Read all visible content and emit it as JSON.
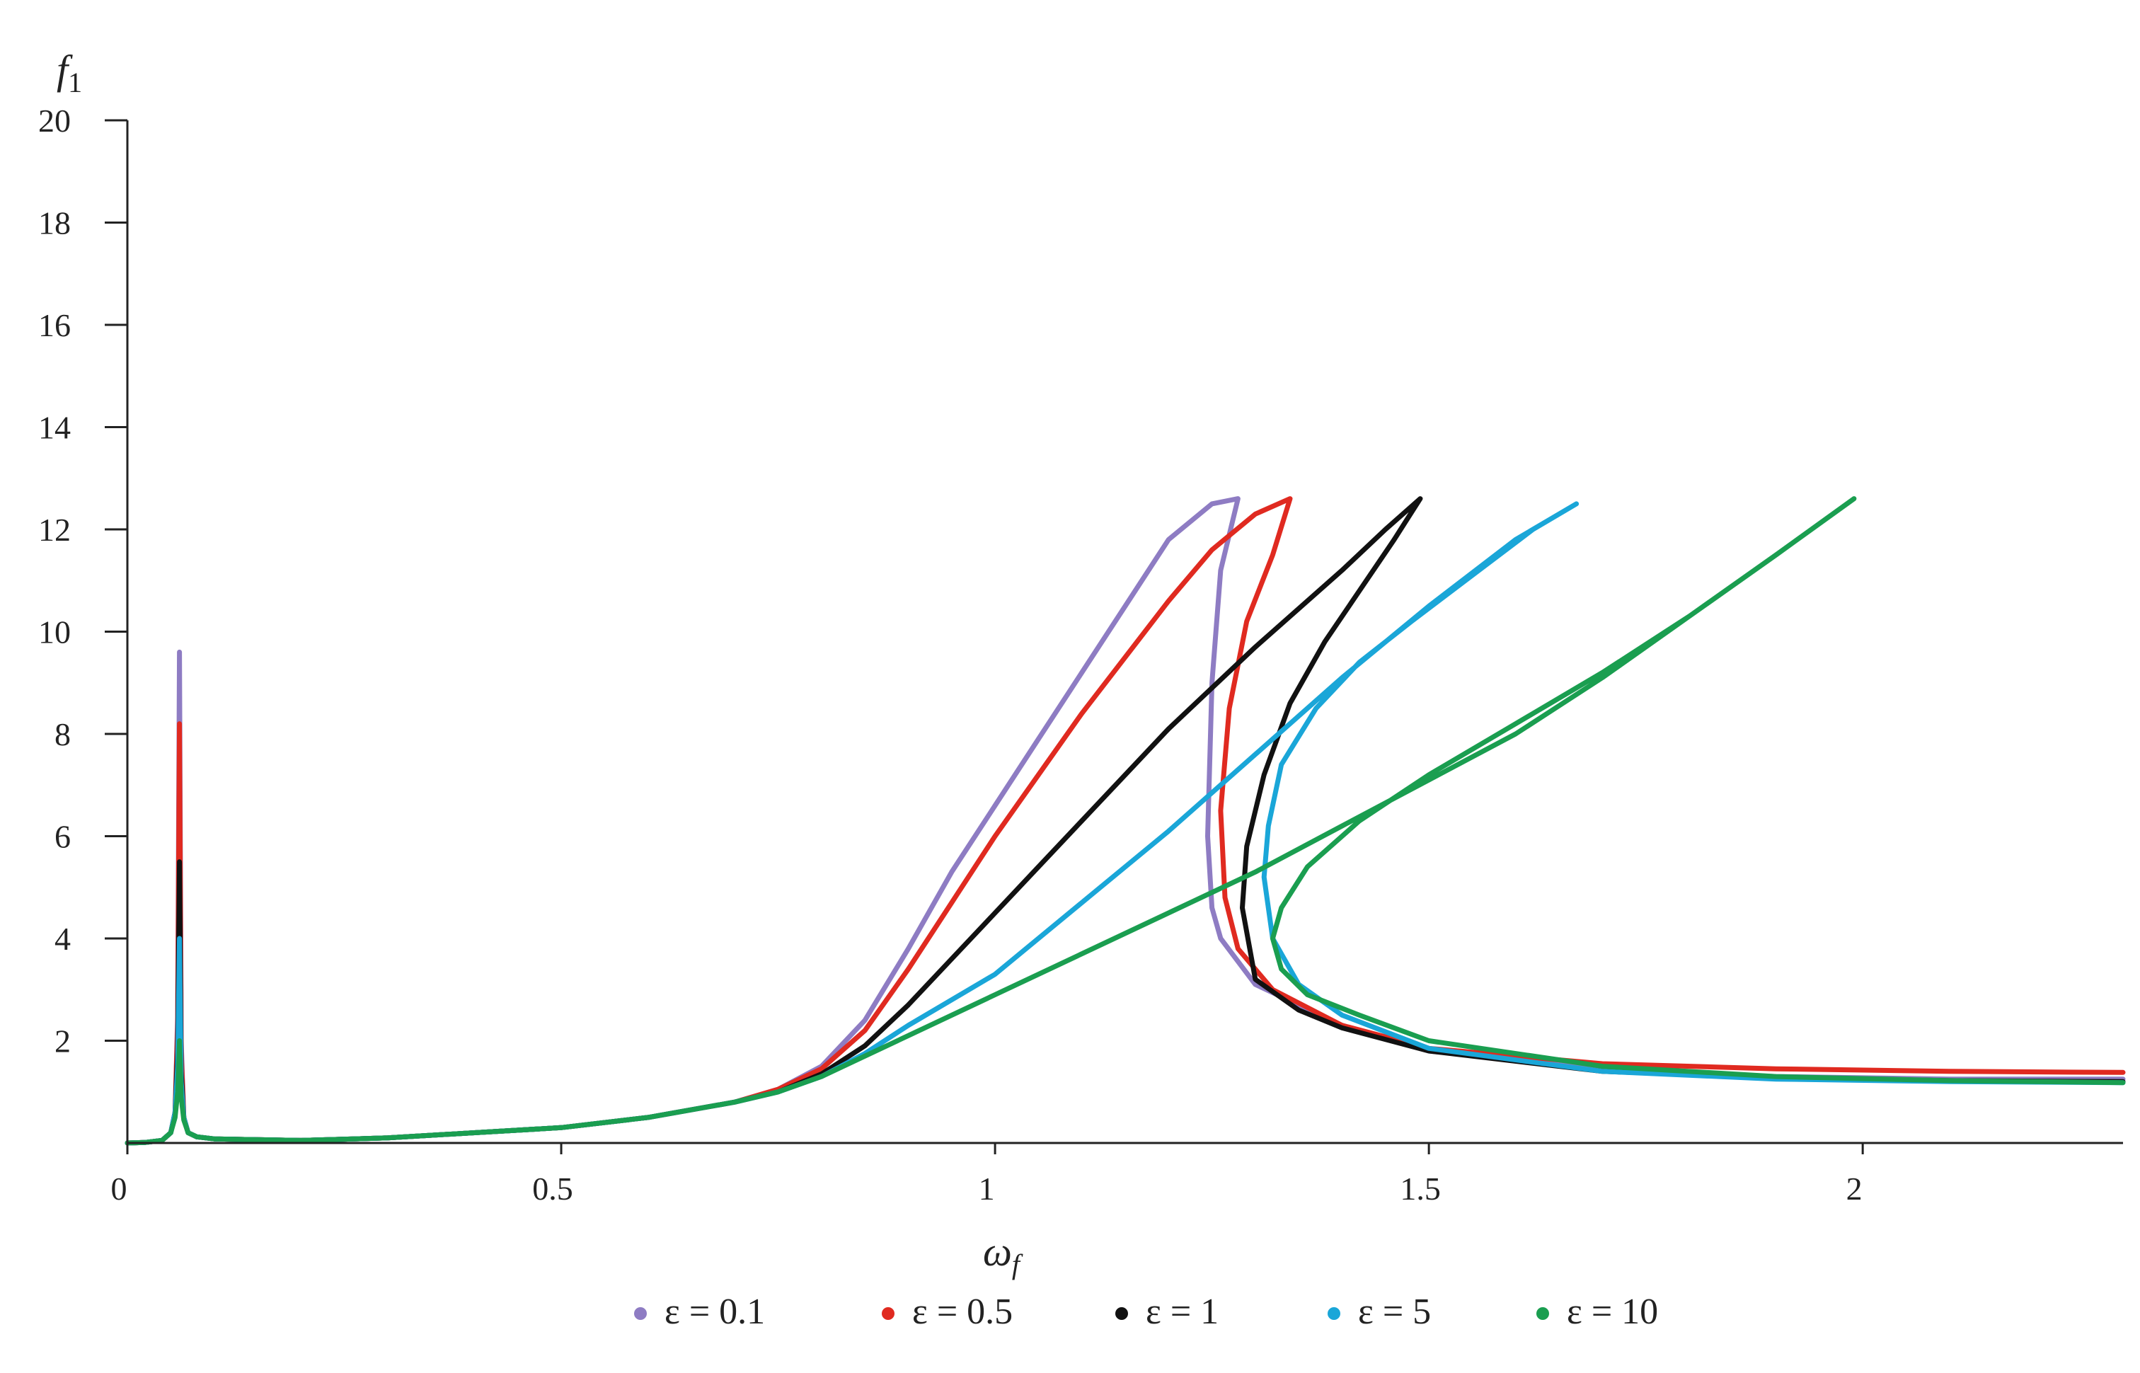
{
  "chart_data": {
    "type": "line",
    "title": "",
    "xlabel": "ω",
    "xlabel_sub": "f",
    "ylabel": "f",
    "ylabel_sub": "1",
    "xlim": [
      0,
      2.3
    ],
    "ylim": [
      0,
      20
    ],
    "x_ticks": [
      0,
      0.5,
      1,
      1.5,
      2
    ],
    "x_tick_labels": [
      "0",
      "0.5",
      "1",
      "1.5",
      "2"
    ],
    "y_ticks": [
      2,
      4,
      6,
      8,
      10,
      12,
      14,
      16,
      18,
      20
    ],
    "y_tick_labels": [
      "2",
      "4",
      "6",
      "8",
      "10",
      "12",
      "14",
      "16",
      "18",
      "20"
    ],
    "grid": false,
    "legend_position": "bottom",
    "series": [
      {
        "name": "ε = 0.1",
        "color": "#8e7cc3",
        "x": [
          0,
          0.02,
          0.04,
          0.05,
          0.055,
          0.058,
          0.06,
          0.062,
          0.065,
          0.07,
          0.08,
          0.1,
          0.2,
          0.3,
          0.4,
          0.5,
          0.6,
          0.7,
          0.75,
          0.8,
          0.85,
          0.9,
          0.95,
          1.0,
          1.05,
          1.1,
          1.15,
          1.2,
          1.25,
          1.28,
          1.26,
          1.25,
          1.245,
          1.25,
          1.26,
          1.3,
          1.4,
          1.5,
          1.7,
          1.9,
          2.1,
          2.3
        ],
        "y": [
          0,
          0.01,
          0.05,
          0.2,
          0.6,
          2.5,
          9.6,
          2.0,
          0.5,
          0.2,
          0.12,
          0.08,
          0.05,
          0.1,
          0.2,
          0.3,
          0.5,
          0.8,
          1.05,
          1.5,
          2.4,
          3.8,
          5.3,
          6.6,
          7.9,
          9.2,
          10.5,
          11.8,
          12.5,
          12.6,
          11.2,
          9.0,
          6.0,
          4.6,
          4.0,
          3.1,
          2.3,
          1.8,
          1.45,
          1.3,
          1.25,
          1.25
        ]
      },
      {
        "name": "ε = 0.5",
        "color": "#e02a20",
        "x": [
          0,
          0.02,
          0.04,
          0.05,
          0.055,
          0.058,
          0.06,
          0.062,
          0.065,
          0.07,
          0.08,
          0.1,
          0.2,
          0.3,
          0.4,
          0.5,
          0.6,
          0.7,
          0.75,
          0.8,
          0.85,
          0.9,
          0.95,
          1.0,
          1.05,
          1.1,
          1.15,
          1.2,
          1.25,
          1.3,
          1.34,
          1.32,
          1.29,
          1.27,
          1.26,
          1.265,
          1.28,
          1.32,
          1.4,
          1.5,
          1.7,
          1.9,
          2.1,
          2.3
        ],
        "y": [
          0,
          0.01,
          0.05,
          0.2,
          0.6,
          2.3,
          8.2,
          1.8,
          0.5,
          0.2,
          0.12,
          0.08,
          0.05,
          0.1,
          0.2,
          0.3,
          0.5,
          0.8,
          1.05,
          1.45,
          2.2,
          3.4,
          4.7,
          6.0,
          7.2,
          8.4,
          9.5,
          10.6,
          11.6,
          12.3,
          12.6,
          11.5,
          10.2,
          8.5,
          6.5,
          4.8,
          3.8,
          3.0,
          2.3,
          1.85,
          1.55,
          1.45,
          1.4,
          1.38
        ]
      },
      {
        "name": "ε = 1",
        "color": "#111111",
        "x": [
          0,
          0.02,
          0.04,
          0.05,
          0.055,
          0.058,
          0.06,
          0.062,
          0.065,
          0.07,
          0.08,
          0.1,
          0.2,
          0.3,
          0.4,
          0.5,
          0.6,
          0.7,
          0.75,
          0.8,
          0.85,
          0.9,
          0.95,
          1.0,
          1.05,
          1.1,
          1.15,
          1.2,
          1.3,
          1.4,
          1.45,
          1.49,
          1.46,
          1.42,
          1.38,
          1.34,
          1.31,
          1.29,
          1.285,
          1.3,
          1.35,
          1.4,
          1.5,
          1.7,
          1.9,
          2.1,
          2.3
        ],
        "y": [
          0,
          0.01,
          0.05,
          0.2,
          0.6,
          1.8,
          5.5,
          1.4,
          0.5,
          0.2,
          0.12,
          0.08,
          0.05,
          0.1,
          0.2,
          0.3,
          0.5,
          0.8,
          1.0,
          1.35,
          1.9,
          2.7,
          3.6,
          4.5,
          5.4,
          6.3,
          7.2,
          8.1,
          9.7,
          11.2,
          12.0,
          12.6,
          11.8,
          10.8,
          9.8,
          8.6,
          7.2,
          5.8,
          4.6,
          3.2,
          2.6,
          2.25,
          1.8,
          1.4,
          1.28,
          1.22,
          1.2
        ]
      },
      {
        "name": "ε = 5",
        "color": "#1aa6d8",
        "x": [
          0,
          0.02,
          0.04,
          0.05,
          0.055,
          0.058,
          0.06,
          0.062,
          0.065,
          0.07,
          0.08,
          0.1,
          0.2,
          0.3,
          0.4,
          0.5,
          0.6,
          0.7,
          0.75,
          0.8,
          0.85,
          0.9,
          1.0,
          1.1,
          1.2,
          1.3,
          1.4,
          1.5,
          1.6,
          1.67,
          1.62,
          1.55,
          1.48,
          1.42,
          1.37,
          1.33,
          1.315,
          1.31,
          1.32,
          1.35,
          1.4,
          1.5,
          1.7,
          1.9,
          2.1,
          2.3
        ],
        "y": [
          0,
          0.01,
          0.05,
          0.2,
          0.6,
          1.5,
          4.0,
          1.2,
          0.5,
          0.2,
          0.12,
          0.08,
          0.05,
          0.1,
          0.2,
          0.3,
          0.5,
          0.8,
          1.0,
          1.3,
          1.75,
          2.3,
          3.3,
          4.7,
          6.1,
          7.6,
          9.1,
          10.5,
          11.8,
          12.5,
          12.0,
          11.1,
          10.2,
          9.4,
          8.5,
          7.4,
          6.2,
          5.2,
          4.0,
          3.1,
          2.5,
          1.85,
          1.4,
          1.25,
          1.2,
          1.18
        ]
      },
      {
        "name": "ε = 10",
        "color": "#1a9e50",
        "x": [
          0,
          0.02,
          0.04,
          0.05,
          0.055,
          0.058,
          0.06,
          0.062,
          0.065,
          0.07,
          0.08,
          0.1,
          0.2,
          0.3,
          0.4,
          0.5,
          0.6,
          0.7,
          0.75,
          0.8,
          0.85,
          0.9,
          1.0,
          1.1,
          1.2,
          1.3,
          1.4,
          1.5,
          1.6,
          1.7,
          1.8,
          1.9,
          1.99,
          1.9,
          1.8,
          1.7,
          1.6,
          1.5,
          1.42,
          1.36,
          1.33,
          1.32,
          1.33,
          1.36,
          1.42,
          1.5,
          1.7,
          1.9,
          2.1,
          2.3
        ],
        "y": [
          0,
          0.01,
          0.05,
          0.2,
          0.5,
          1.0,
          2.0,
          0.9,
          0.45,
          0.2,
          0.12,
          0.08,
          0.05,
          0.1,
          0.2,
          0.3,
          0.5,
          0.8,
          1.0,
          1.3,
          1.7,
          2.1,
          2.9,
          3.7,
          4.5,
          5.3,
          6.2,
          7.1,
          8.0,
          9.1,
          10.3,
          11.5,
          12.6,
          11.5,
          10.3,
          9.2,
          8.2,
          7.2,
          6.3,
          5.4,
          4.6,
          4.0,
          3.4,
          2.9,
          2.5,
          2.0,
          1.5,
          1.3,
          1.22,
          1.18
        ]
      }
    ]
  }
}
